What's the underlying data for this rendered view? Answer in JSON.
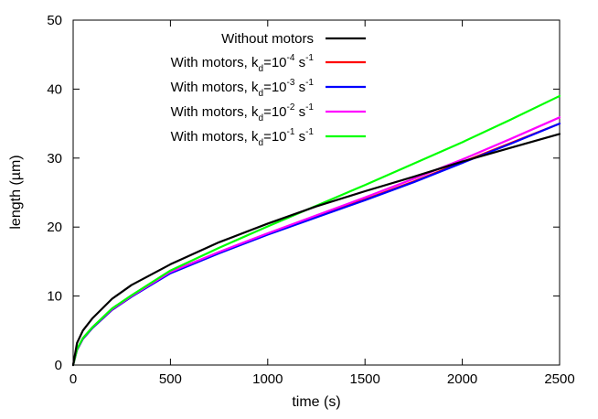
{
  "chart_data": {
    "type": "line",
    "xlabel": "time (s)",
    "ylabel": "length (µm)",
    "xlim": [
      0,
      2500
    ],
    "ylim": [
      0,
      50
    ],
    "xticks": [
      0,
      500,
      1000,
      1500,
      2000,
      2500
    ],
    "yticks": [
      0,
      10,
      20,
      30,
      40,
      50
    ],
    "grid": false,
    "legend_position": "top-left",
    "series": [
      {
        "name": "Without motors",
        "color": "#000000",
        "x": [
          0,
          20,
          50,
          100,
          200,
          300,
          500,
          750,
          1000,
          1250,
          1500,
          1750,
          2000,
          2250,
          2500
        ],
        "y": [
          0,
          3.2,
          5.0,
          6.8,
          9.6,
          11.6,
          14.6,
          17.8,
          20.5,
          23.0,
          25.2,
          27.3,
          29.5,
          31.5,
          33.5
        ]
      },
      {
        "name": "With motors, k_d=10^-4 s^-1",
        "label": {
          "pre": "With motors, k",
          "sub": "d",
          "mid": "=10",
          "sup": "-4",
          "post": " s",
          "sup2": "-1"
        },
        "color": "#ff0000",
        "x": [
          0,
          20,
          50,
          100,
          200,
          300,
          500,
          750,
          1000,
          1250,
          1500,
          1750,
          2000,
          2250,
          2500
        ],
        "y": [
          0,
          2.2,
          3.8,
          5.4,
          8.0,
          9.9,
          13.4,
          16.3,
          19.0,
          21.5,
          24.0,
          26.6,
          29.4,
          32.2,
          35.0
        ]
      },
      {
        "name": "With motors, k_d=10^-3 s^-1",
        "label": {
          "pre": "With motors, k",
          "sub": "d",
          "mid": "=10",
          "sup": "-3",
          "post": " s",
          "sup2": "-1"
        },
        "color": "#0000ff",
        "x": [
          0,
          20,
          50,
          100,
          200,
          300,
          500,
          750,
          1000,
          1250,
          1500,
          1750,
          2000,
          2250,
          2500
        ],
        "y": [
          0,
          2.2,
          3.8,
          5.4,
          8.0,
          9.9,
          13.3,
          16.2,
          18.9,
          21.4,
          23.9,
          26.5,
          29.3,
          32.1,
          35.0
        ]
      },
      {
        "name": "With motors, k_d=10^-2 s^-1",
        "label": {
          "pre": "With motors, k",
          "sub": "d",
          "mid": "=10",
          "sup": "-2",
          "post": " s",
          "sup2": "-1"
        },
        "color": "#ff00ff",
        "x": [
          0,
          20,
          50,
          100,
          200,
          300,
          500,
          750,
          1000,
          1250,
          1500,
          1750,
          2000,
          2250,
          2500
        ],
        "y": [
          0,
          2.3,
          3.9,
          5.5,
          8.1,
          10.0,
          13.5,
          16.4,
          19.1,
          21.7,
          24.3,
          27.0,
          29.8,
          32.8,
          35.9
        ]
      },
      {
        "name": "With motors, k_d=10^-1 s^-1",
        "label": {
          "pre": "With motors, k",
          "sub": "d",
          "mid": "=10",
          "sup": "-1",
          "post": " s",
          "sup2": "-1"
        },
        "color": "#00ff00",
        "x": [
          0,
          20,
          50,
          100,
          200,
          300,
          500,
          750,
          1000,
          1250,
          1500,
          1750,
          2000,
          2250,
          2500
        ],
        "y": [
          0,
          2.3,
          3.9,
          5.5,
          8.2,
          10.1,
          13.7,
          17.0,
          20.1,
          23.1,
          26.1,
          29.2,
          32.3,
          35.6,
          39.0
        ]
      }
    ]
  }
}
